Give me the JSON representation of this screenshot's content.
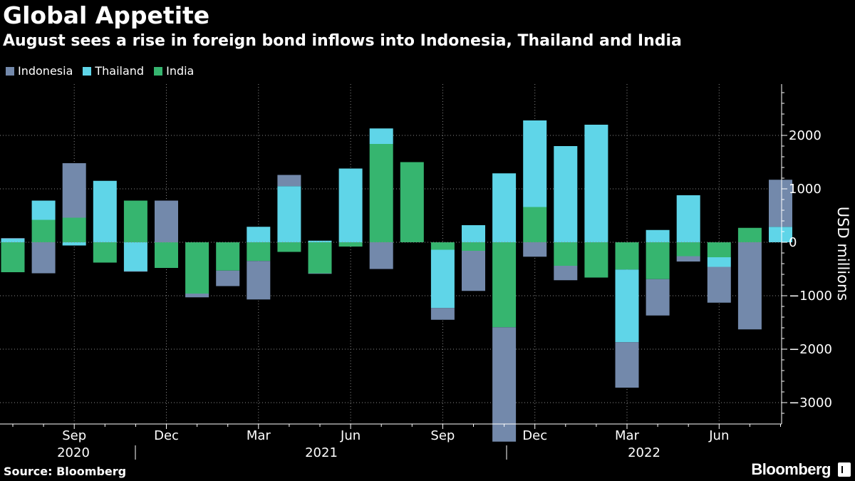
{
  "title": "Global Appetite",
  "subtitle": "August sees a rise in foreign bond inflows into Indonesia, Thailand and India",
  "source": "Source: Bloomberg",
  "brand": "Bloomberg",
  "colors": {
    "Indonesia": "#7389ab",
    "Thailand": "#5fd5e8",
    "India": "#36b56f",
    "background": "#000000",
    "grid": "#888888"
  },
  "chart_data": {
    "type": "bar",
    "stacked": true,
    "title": "Global Appetite",
    "subtitle": "August sees a rise in foreign bond inflows into Indonesia, Thailand and India",
    "ylabel": "USD millions",
    "ylim": [
      -3300,
      2800
    ],
    "yticks": [
      -3000,
      -2000,
      -1000,
      0,
      1000,
      2000
    ],
    "grid": true,
    "legend_position": "top-left",
    "categories": [
      "2020-07",
      "2020-08",
      "2020-09",
      "2020-10",
      "2020-11",
      "2020-12",
      "2021-01",
      "2021-02",
      "2021-03",
      "2021-04",
      "2021-05",
      "2021-06",
      "2021-07",
      "2021-08",
      "2021-09",
      "2021-10",
      "2021-11",
      "2021-12",
      "2022-01",
      "2022-02",
      "2022-03",
      "2022-04",
      "2022-05",
      "2022-06",
      "2022-07",
      "2022-08"
    ],
    "x_tick_labels": [
      {
        "month": "2020-09",
        "label": "Sep"
      },
      {
        "month": "2020-12",
        "label": "Dec"
      },
      {
        "month": "2021-03",
        "label": "Mar"
      },
      {
        "month": "2021-06",
        "label": "Jun"
      },
      {
        "month": "2021-09",
        "label": "Sep"
      },
      {
        "month": "2021-12",
        "label": "Dec"
      },
      {
        "month": "2022-03",
        "label": "Mar"
      },
      {
        "month": "2022-06",
        "label": "Jun"
      }
    ],
    "year_labels": [
      "2020",
      "2021",
      "2022"
    ],
    "series": [
      {
        "name": "Indonesia",
        "values": [
          10,
          -580,
          1020,
          0,
          -10,
          780,
          -70,
          -290,
          -720,
          210,
          -10,
          0,
          -500,
          0,
          -220,
          -750,
          -2140,
          -270,
          -270,
          0,
          -850,
          -680,
          -100,
          -670,
          -1630,
          880
        ]
      },
      {
        "name": "Thailand",
        "values": [
          70,
          360,
          -60,
          1150,
          -540,
          0,
          0,
          0,
          290,
          1050,
          30,
          1380,
          290,
          0,
          -1090,
          320,
          1290,
          1620,
          1800,
          2200,
          -1360,
          230,
          880,
          -180,
          0,
          290
        ]
      },
      {
        "name": "India",
        "values": [
          -560,
          420,
          460,
          -380,
          780,
          -480,
          -960,
          -530,
          -350,
          -180,
          -580,
          -80,
          1840,
          1500,
          -140,
          -160,
          -1590,
          660,
          -440,
          -660,
          -510,
          -690,
          -260,
          -280,
          270,
          0
        ]
      }
    ]
  }
}
